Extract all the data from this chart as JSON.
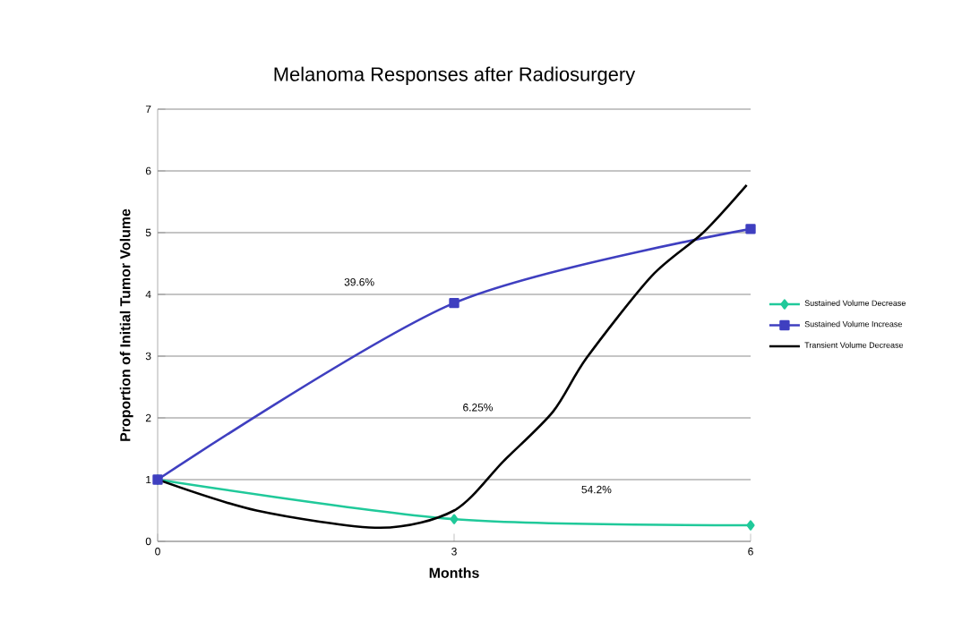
{
  "chart_data": {
    "type": "line",
    "title": "Melanoma Responses after Radiosurgery",
    "xlabel": "Months",
    "ylabel": "Proportion of Initial Tumor Volume",
    "x": [
      0,
      3,
      6
    ],
    "series": [
      {
        "name": "Sustained Volume Decrease",
        "color": "#20c99a",
        "values": [
          1,
          0.36,
          0.26
        ],
        "marker": "diamond"
      },
      {
        "name": "Sustained Volume Increase",
        "color": "#3f3fc0",
        "values": [
          1,
          3.86,
          5.06
        ],
        "marker": "square"
      },
      {
        "name": "Transient Volume Decrease",
        "color": "#000000",
        "x": [
          0,
          1,
          2.25,
          3,
          3.5,
          4,
          4.34,
          5,
          5.52,
          5.96
        ],
        "values": [
          1,
          0.5,
          0.22,
          0.5,
          1.3,
          2.1,
          2.97,
          4.3,
          5.0,
          5.77
        ],
        "marker": "none"
      }
    ],
    "xlim": [
      0,
      6
    ],
    "xticks": [
      0,
      3,
      6
    ],
    "ylim": [
      0,
      7
    ],
    "yticks": [
      0,
      1,
      2,
      3,
      4,
      5,
      6,
      7
    ],
    "grid": "y",
    "legend": "right",
    "annotations": [
      "39.6%",
      "6.25%",
      "54.2%"
    ]
  }
}
